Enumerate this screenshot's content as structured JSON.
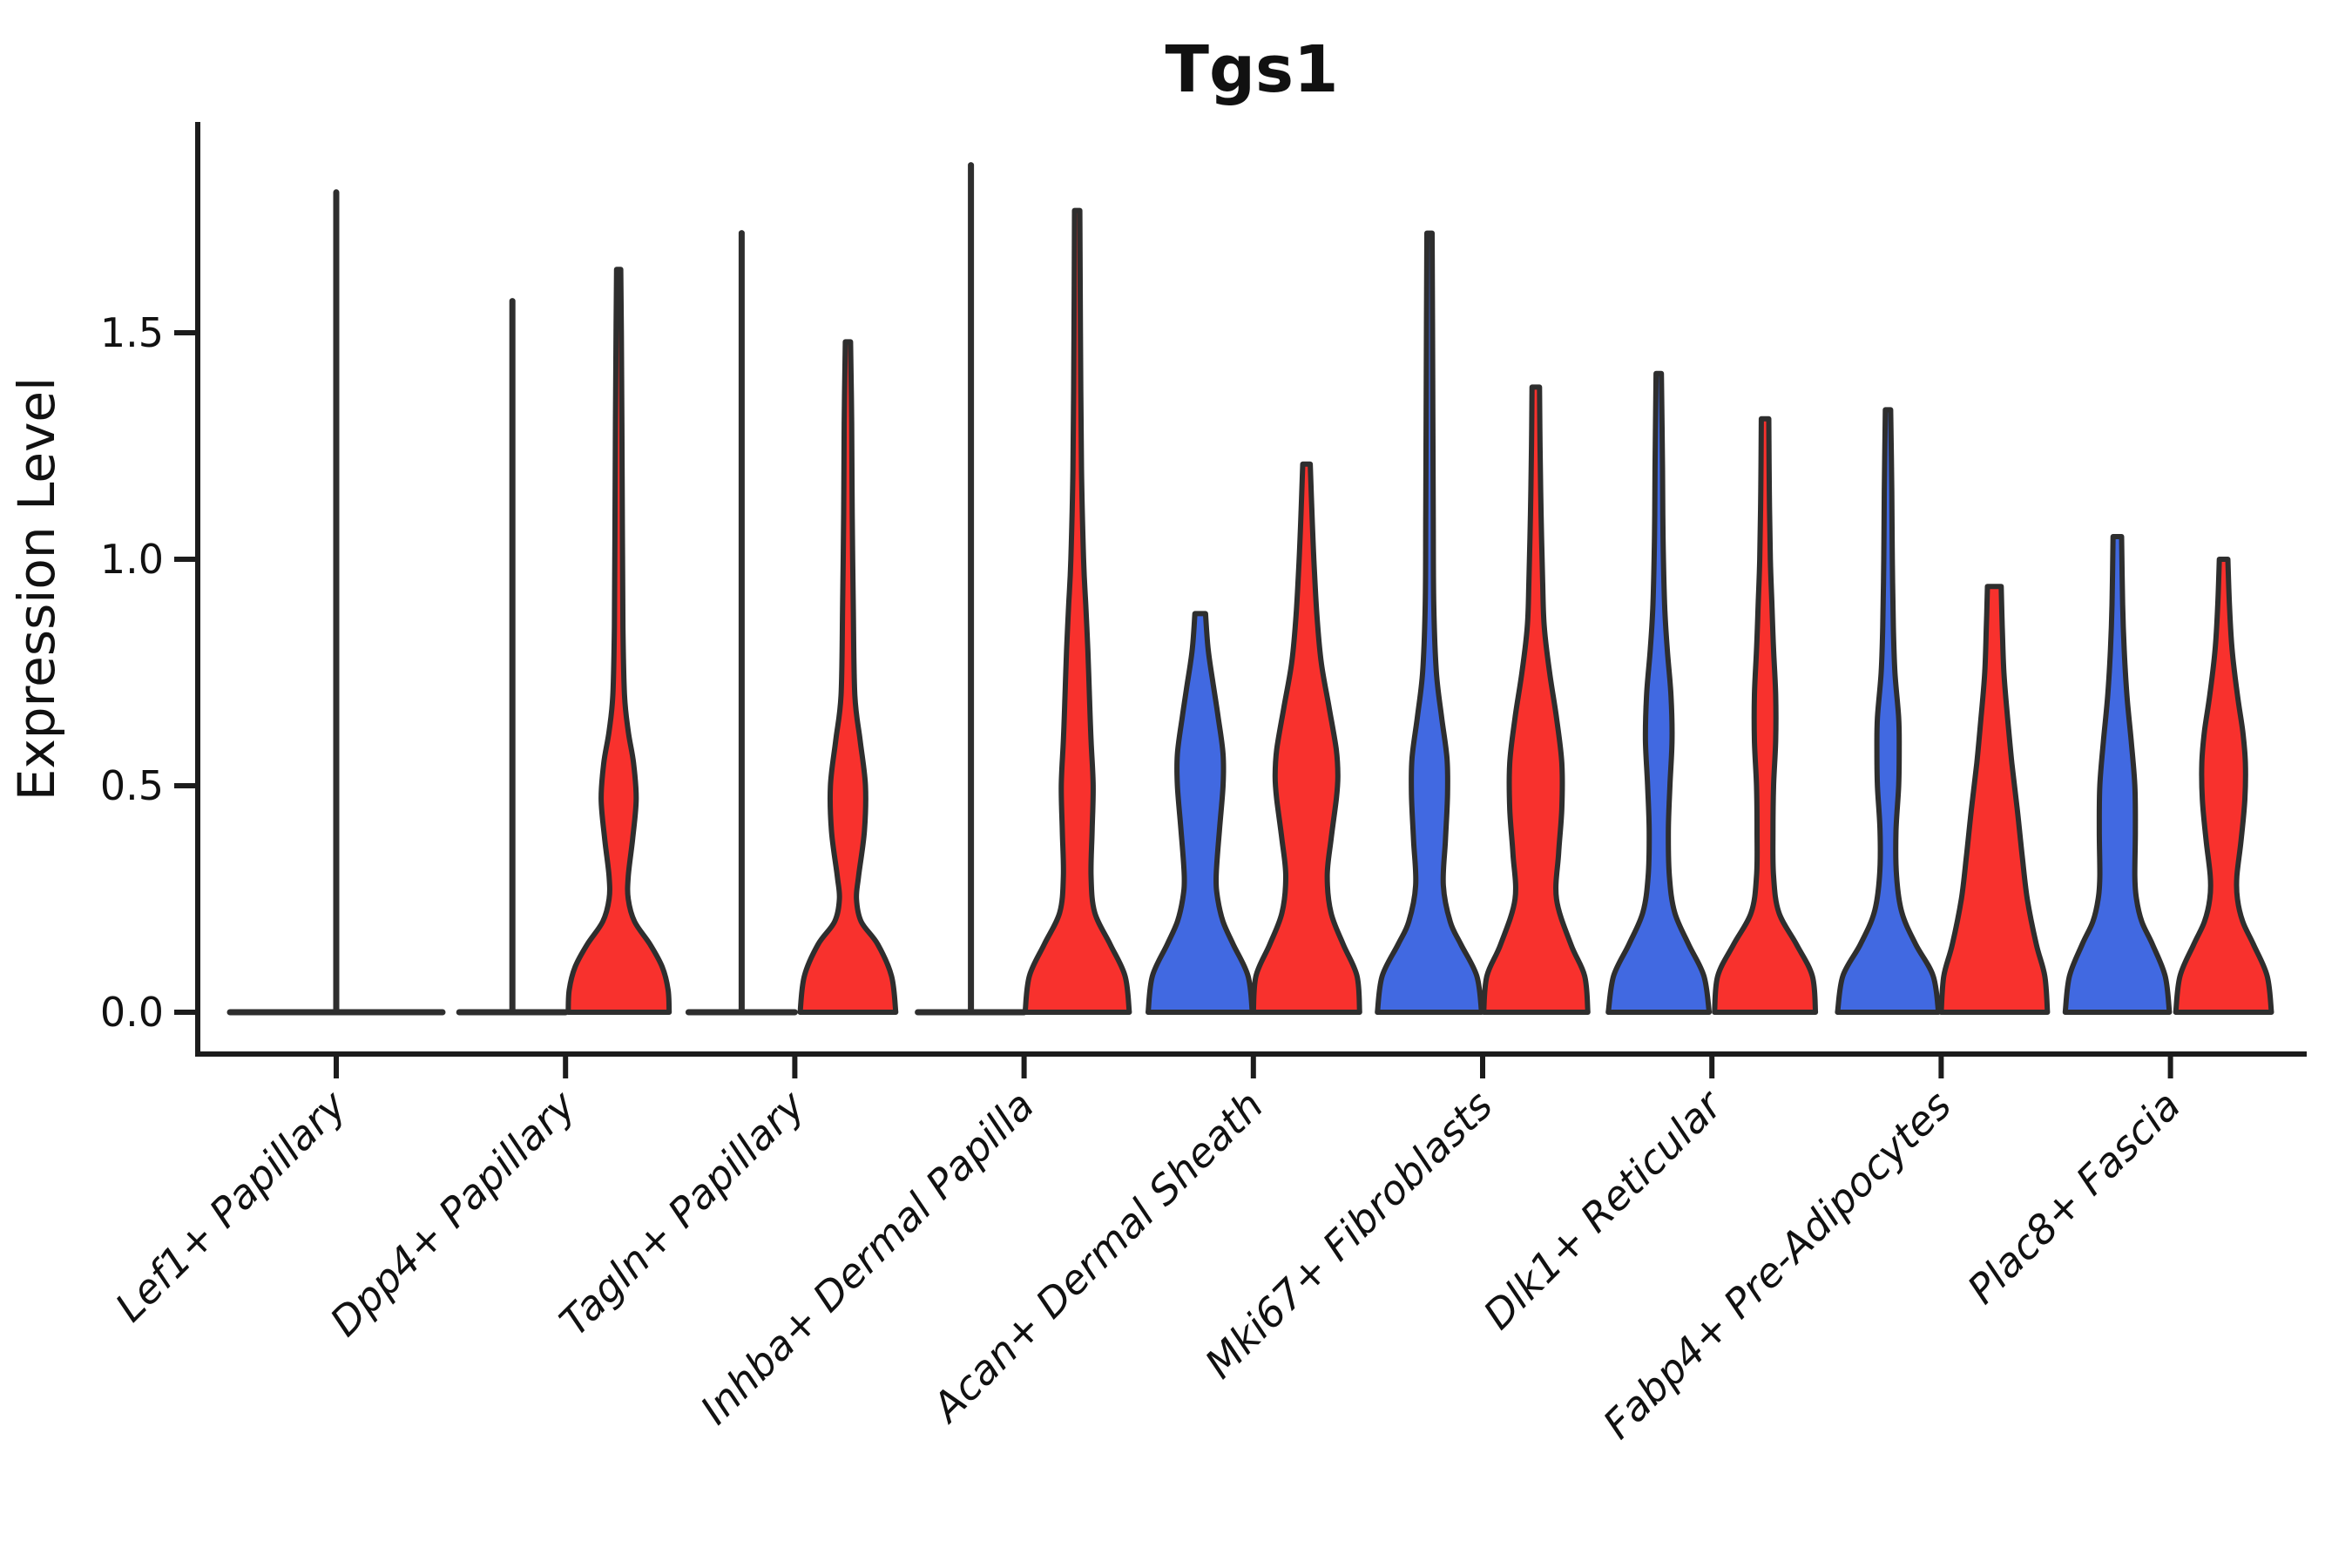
{
  "title": "Tgs1",
  "y_axis": {
    "label": "Expression Level",
    "tick_labels": [
      "0.0",
      "0.5",
      "1.0",
      "1.5"
    ]
  },
  "x_axis": {
    "category_labels": [
      "Lef1+ Papillary",
      "Dpp4+ Papillary",
      "Tagln+ Papillary",
      "Inhba+ Dermal Papilla",
      "Acan+ Dermal Sheath",
      "Mki67+ Fibroblasts",
      "Dlk1+ Reticular",
      "Fabp4+ Pre-Adipocytes",
      "Plac8+ Fascia"
    ]
  },
  "chart_data": {
    "type": "violin",
    "title": "Tgs1",
    "xlabel": "",
    "ylabel": "Expression Level",
    "ylim": [
      0,
      1.94
    ],
    "yticks": [
      0,
      0.5,
      1.0,
      1.5
    ],
    "grid": false,
    "legend": "none",
    "split_violins_per_category": 2,
    "colors": {
      "blue": "#4169E1",
      "red": "#F8312D",
      "outline": "#2e2e2e"
    },
    "categories": [
      {
        "label": "Lef1+ Papillary",
        "violins": [
          {
            "side": "both",
            "style": "flat",
            "color": "outline",
            "max": 1.81,
            "width_scale": 2.0
          }
        ]
      },
      {
        "label": "Dpp4+ Papillary",
        "violins": [
          {
            "side": "left",
            "style": "flat",
            "color": "blue",
            "max": 1.57,
            "width_scale": 1.0
          },
          {
            "side": "right",
            "style": "density",
            "color": "red",
            "max": 1.64,
            "profile": [
              [
                0,
                0.95
              ],
              [
                0.05,
                0.93
              ],
              [
                0.1,
                0.82
              ],
              [
                0.15,
                0.59
              ],
              [
                0.2,
                0.3
              ],
              [
                0.25,
                0.18
              ],
              [
                0.3,
                0.18
              ],
              [
                0.38,
                0.26
              ],
              [
                0.47,
                0.33
              ],
              [
                0.55,
                0.28
              ],
              [
                0.62,
                0.18
              ],
              [
                0.7,
                0.11
              ],
              [
                0.85,
                0.08
              ],
              [
                1.05,
                0.07
              ],
              [
                1.3,
                0.06
              ],
              [
                1.5,
                0.05
              ],
              [
                1.64,
                0.04
              ]
            ]
          }
        ]
      },
      {
        "label": "Tagln+ Papillary",
        "violins": [
          {
            "side": "left",
            "style": "flat",
            "color": "blue",
            "max": 1.72,
            "width_scale": 1.0
          },
          {
            "side": "right",
            "style": "density",
            "color": "red",
            "max": 1.48,
            "profile": [
              [
                0,
                0.9
              ],
              [
                0.08,
                0.82
              ],
              [
                0.15,
                0.56
              ],
              [
                0.2,
                0.25
              ],
              [
                0.25,
                0.16
              ],
              [
                0.3,
                0.2
              ],
              [
                0.4,
                0.31
              ],
              [
                0.5,
                0.33
              ],
              [
                0.6,
                0.23
              ],
              [
                0.7,
                0.13
              ],
              [
                0.9,
                0.1
              ],
              [
                1.1,
                0.08
              ],
              [
                1.3,
                0.07
              ],
              [
                1.48,
                0.05
              ]
            ]
          }
        ]
      },
      {
        "label": "Inhba+ Dermal Papilla",
        "violins": [
          {
            "side": "left",
            "style": "flat",
            "color": "blue",
            "max": 1.87,
            "width_scale": 1.0
          },
          {
            "side": "right",
            "style": "density",
            "color": "red",
            "max": 1.77,
            "profile": [
              [
                0,
                0.98
              ],
              [
                0.08,
                0.9
              ],
              [
                0.15,
                0.62
              ],
              [
                0.22,
                0.33
              ],
              [
                0.3,
                0.26
              ],
              [
                0.4,
                0.28
              ],
              [
                0.5,
                0.3
              ],
              [
                0.6,
                0.26
              ],
              [
                0.7,
                0.23
              ],
              [
                0.8,
                0.2
              ],
              [
                0.9,
                0.16
              ],
              [
                1.0,
                0.12
              ],
              [
                1.2,
                0.08
              ],
              [
                1.5,
                0.06
              ],
              [
                1.77,
                0.05
              ]
            ]
          }
        ]
      },
      {
        "label": "Acan+ Dermal Sheath",
        "violins": [
          {
            "side": "left",
            "style": "density",
            "color": "blue",
            "max": 0.88,
            "profile": [
              [
                0,
                0.98
              ],
              [
                0.08,
                0.9
              ],
              [
                0.15,
                0.62
              ],
              [
                0.2,
                0.43
              ],
              [
                0.25,
                0.33
              ],
              [
                0.3,
                0.3
              ],
              [
                0.4,
                0.36
              ],
              [
                0.5,
                0.43
              ],
              [
                0.57,
                0.43
              ],
              [
                0.65,
                0.34
              ],
              [
                0.72,
                0.25
              ],
              [
                0.8,
                0.15
              ],
              [
                0.88,
                0.1
              ]
            ]
          },
          {
            "side": "right",
            "style": "density",
            "color": "red",
            "max": 1.21,
            "profile": [
              [
                0,
                1.0
              ],
              [
                0.08,
                0.95
              ],
              [
                0.15,
                0.69
              ],
              [
                0.22,
                0.46
              ],
              [
                0.3,
                0.39
              ],
              [
                0.38,
                0.46
              ],
              [
                0.47,
                0.56
              ],
              [
                0.52,
                0.59
              ],
              [
                0.58,
                0.56
              ],
              [
                0.67,
                0.43
              ],
              [
                0.77,
                0.28
              ],
              [
                0.87,
                0.2
              ],
              [
                0.97,
                0.15
              ],
              [
                1.08,
                0.11
              ],
              [
                1.21,
                0.07
              ]
            ]
          }
        ]
      },
      {
        "label": "Mki67+ Fibroblasts",
        "violins": [
          {
            "side": "left",
            "style": "density",
            "color": "blue",
            "max": 1.72,
            "profile": [
              [
                0,
                0.98
              ],
              [
                0.08,
                0.89
              ],
              [
                0.15,
                0.59
              ],
              [
                0.2,
                0.39
              ],
              [
                0.28,
                0.26
              ],
              [
                0.38,
                0.3
              ],
              [
                0.48,
                0.34
              ],
              [
                0.56,
                0.33
              ],
              [
                0.65,
                0.23
              ],
              [
                0.75,
                0.13
              ],
              [
                0.9,
                0.08
              ],
              [
                1.1,
                0.07
              ],
              [
                1.4,
                0.06
              ],
              [
                1.72,
                0.05
              ]
            ]
          },
          {
            "side": "right",
            "style": "density",
            "color": "red",
            "max": 1.38,
            "profile": [
              [
                0,
                0.98
              ],
              [
                0.08,
                0.92
              ],
              [
                0.15,
                0.66
              ],
              [
                0.25,
                0.39
              ],
              [
                0.35,
                0.43
              ],
              [
                0.45,
                0.49
              ],
              [
                0.55,
                0.49
              ],
              [
                0.65,
                0.39
              ],
              [
                0.75,
                0.26
              ],
              [
                0.85,
                0.16
              ],
              [
                0.95,
                0.13
              ],
              [
                1.1,
                0.1
              ],
              [
                1.25,
                0.08
              ],
              [
                1.38,
                0.07
              ]
            ]
          }
        ]
      },
      {
        "label": "Dlk1+ Reticular",
        "violins": [
          {
            "side": "left",
            "style": "density",
            "color": "blue",
            "max": 1.41,
            "profile": [
              [
                0,
                0.95
              ],
              [
                0.08,
                0.85
              ],
              [
                0.15,
                0.56
              ],
              [
                0.22,
                0.3
              ],
              [
                0.3,
                0.2
              ],
              [
                0.4,
                0.18
              ],
              [
                0.5,
                0.21
              ],
              [
                0.6,
                0.25
              ],
              [
                0.7,
                0.23
              ],
              [
                0.8,
                0.16
              ],
              [
                0.9,
                0.11
              ],
              [
                1.05,
                0.08
              ],
              [
                1.2,
                0.07
              ],
              [
                1.41,
                0.05
              ]
            ]
          },
          {
            "side": "right",
            "style": "density",
            "color": "red",
            "max": 1.31,
            "profile": [
              [
                0,
                0.95
              ],
              [
                0.08,
                0.89
              ],
              [
                0.15,
                0.59
              ],
              [
                0.22,
                0.26
              ],
              [
                0.3,
                0.16
              ],
              [
                0.4,
                0.15
              ],
              [
                0.5,
                0.16
              ],
              [
                0.6,
                0.2
              ],
              [
                0.7,
                0.2
              ],
              [
                0.8,
                0.16
              ],
              [
                0.9,
                0.13
              ],
              [
                1.0,
                0.1
              ],
              [
                1.15,
                0.08
              ],
              [
                1.31,
                0.07
              ]
            ]
          }
        ]
      },
      {
        "label": "Fabp4+ Pre-Adipocytes",
        "violins": [
          {
            "side": "left",
            "style": "density",
            "color": "blue",
            "max": 1.33,
            "profile": [
              [
                0,
                0.95
              ],
              [
                0.08,
                0.85
              ],
              [
                0.15,
                0.52
              ],
              [
                0.22,
                0.26
              ],
              [
                0.3,
                0.16
              ],
              [
                0.4,
                0.15
              ],
              [
                0.5,
                0.2
              ],
              [
                0.58,
                0.21
              ],
              [
                0.65,
                0.2
              ],
              [
                0.75,
                0.13
              ],
              [
                0.85,
                0.1
              ],
              [
                1.0,
                0.08
              ],
              [
                1.15,
                0.07
              ],
              [
                1.33,
                0.05
              ]
            ]
          },
          {
            "side": "right",
            "style": "density",
            "color": "red",
            "max": 0.94,
            "profile": [
              [
                0,
                1.0
              ],
              [
                0.08,
                0.95
              ],
              [
                0.15,
                0.79
              ],
              [
                0.25,
                0.62
              ],
              [
                0.35,
                0.52
              ],
              [
                0.45,
                0.43
              ],
              [
                0.55,
                0.33
              ],
              [
                0.65,
                0.25
              ],
              [
                0.75,
                0.18
              ],
              [
                0.85,
                0.15
              ],
              [
                0.94,
                0.13
              ]
            ]
          }
        ]
      },
      {
        "label": "Plac8+ Fascia",
        "violins": [
          {
            "side": "left",
            "style": "density",
            "color": "blue",
            "max": 1.05,
            "profile": [
              [
                0,
                0.98
              ],
              [
                0.08,
                0.9
              ],
              [
                0.15,
                0.66
              ],
              [
                0.2,
                0.46
              ],
              [
                0.25,
                0.36
              ],
              [
                0.3,
                0.33
              ],
              [
                0.4,
                0.34
              ],
              [
                0.5,
                0.33
              ],
              [
                0.6,
                0.26
              ],
              [
                0.7,
                0.18
              ],
              [
                0.8,
                0.13
              ],
              [
                0.9,
                0.1
              ],
              [
                1.05,
                0.08
              ]
            ]
          },
          {
            "side": "right",
            "style": "density",
            "color": "red",
            "max": 1.0,
            "profile": [
              [
                0,
                0.9
              ],
              [
                0.08,
                0.82
              ],
              [
                0.15,
                0.56
              ],
              [
                0.2,
                0.36
              ],
              [
                0.25,
                0.26
              ],
              [
                0.3,
                0.25
              ],
              [
                0.38,
                0.33
              ],
              [
                0.47,
                0.4
              ],
              [
                0.55,
                0.41
              ],
              [
                0.62,
                0.36
              ],
              [
                0.7,
                0.26
              ],
              [
                0.8,
                0.16
              ],
              [
                0.9,
                0.11
              ],
              [
                1.0,
                0.08
              ]
            ]
          }
        ]
      }
    ]
  }
}
